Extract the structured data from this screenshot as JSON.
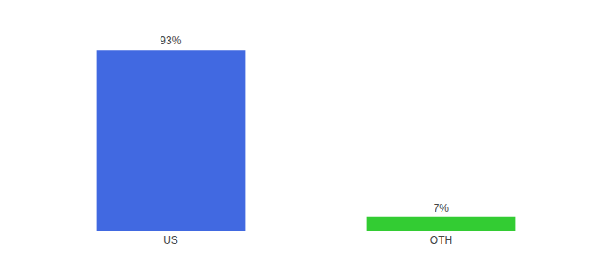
{
  "chart_data": {
    "type": "bar",
    "categories": [
      "US",
      "OTH"
    ],
    "values": [
      93,
      7
    ],
    "value_labels": [
      "93%",
      "7%"
    ],
    "data_labels": true,
    "colors": [
      "#4169e1",
      "#33cc33"
    ],
    "ylim": [
      0,
      105
    ],
    "grid": false,
    "tick_labels": "x"
  }
}
